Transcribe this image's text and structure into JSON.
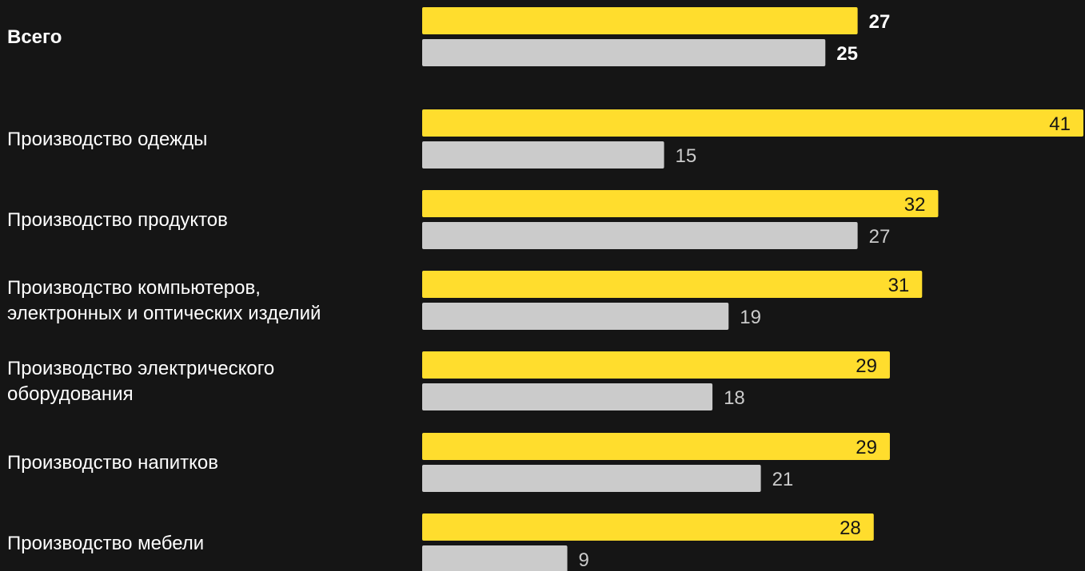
{
  "chart_data": {
    "type": "bar",
    "orientation": "horizontal",
    "grid": false,
    "colors": {
      "background": "#151515",
      "series_primary": "#FFDD2D",
      "series_secondary": "#CBCBCB",
      "label_text": "#FFFFFF",
      "value_on_primary": "#151515",
      "value_outside": "#CBCBCB"
    },
    "xlim": [
      0,
      41
    ],
    "categories": [
      "Всего",
      "Производство одежды",
      "Производство продуктов",
      "Производство компьютеров, электронных и оптических изделий",
      "Производство электрического оборудования",
      "Производство напитков",
      "Производство мебели"
    ],
    "series": [
      {
        "values": [
          27,
          41,
          32,
          31,
          29,
          29,
          28
        ]
      },
      {
        "values": [
          25,
          15,
          27,
          19,
          18,
          21,
          9
        ]
      }
    ],
    "category_lines": [
      [
        "Всего"
      ],
      [
        "Производство одежды"
      ],
      [
        "Производство продуктов"
      ],
      [
        "Производство компьютеров,",
        "электронных и оптических изделий"
      ],
      [
        "Производство электрического",
        "оборудования"
      ],
      [
        "Производство напитков"
      ],
      [
        "Производство мебели"
      ]
    ]
  }
}
